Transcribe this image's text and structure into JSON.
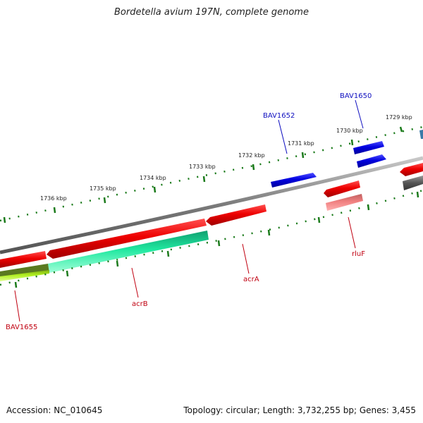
{
  "title": "Bordetella avium 197N, complete genome",
  "footer": {
    "accession": "Accession: NC_010645",
    "stats": "Topology: circular; Length: 3,732,255 bp; Genes: 3,455"
  },
  "scale_labels": [
    "1729 kbp",
    "1730 kbp",
    "1731 kbp",
    "1732 kbp",
    "1733 kbp",
    "1734 kbp",
    "1735 kbp",
    "1736 kbp"
  ],
  "gene_labels": {
    "bav1650": "BAV1650",
    "bav1652": "BAV1652",
    "rluf": "rluF",
    "acra": "acrA",
    "acrb": "acrB",
    "bav1655": "BAV1655"
  },
  "colors": {
    "backbone": "#8a8a8a",
    "tick": "#1a7a1a",
    "forward_gene": "#0000e0",
    "reverse_gene": "#ee0000",
    "pseudo_gene": "#f08080",
    "cds_green": "#20e8a0",
    "cds_lime": "#b0f020",
    "gray_feature": "#555555",
    "teal_feature": "#3a7aa8"
  }
}
